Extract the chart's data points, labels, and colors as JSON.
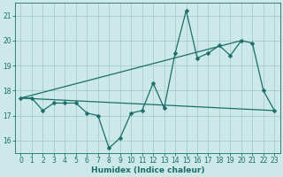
{
  "title": "",
  "xlabel": "Humidex (Indice chaleur)",
  "bg_color": "#cce8e8",
  "grid_color": "#aacccc",
  "line_color": "#1a6e6a",
  "xlim": [
    -0.5,
    23.5
  ],
  "ylim": [
    15.5,
    21.5
  ],
  "yticks": [
    16,
    17,
    18,
    19,
    20,
    21
  ],
  "xticks": [
    0,
    1,
    2,
    3,
    4,
    5,
    6,
    7,
    8,
    9,
    10,
    11,
    12,
    13,
    14,
    15,
    16,
    17,
    18,
    19,
    20,
    21,
    22,
    23
  ],
  "series1_x": [
    0,
    1,
    2,
    3,
    4,
    5,
    6,
    7,
    8,
    9,
    10,
    11,
    12,
    13,
    14,
    15,
    16,
    17,
    18,
    19,
    20,
    21,
    22,
    23
  ],
  "series1_y": [
    17.7,
    17.7,
    17.2,
    17.5,
    17.5,
    17.5,
    17.1,
    17.0,
    15.7,
    16.1,
    17.1,
    17.2,
    18.3,
    17.3,
    19.5,
    21.2,
    19.3,
    19.5,
    19.8,
    19.4,
    20.0,
    19.9,
    18.0,
    17.2
  ],
  "series2_x": [
    0,
    23
  ],
  "series2_y": [
    17.7,
    17.2
  ],
  "series3_x": [
    0,
    20
  ],
  "series3_y": [
    17.7,
    20.0
  ],
  "tick_fontsize": 5.5,
  "xlabel_fontsize": 6.5,
  "marker_size": 2.5,
  "line_width": 0.9
}
